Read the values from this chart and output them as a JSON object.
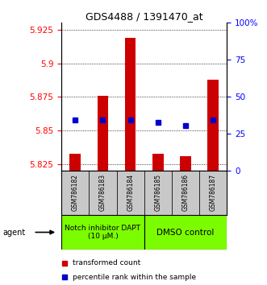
{
  "title": "GDS4488 / 1391470_at",
  "samples": [
    "GSM786182",
    "GSM786183",
    "GSM786184",
    "GSM786185",
    "GSM786186",
    "GSM786187"
  ],
  "bar_bottoms": [
    5.82,
    5.82,
    5.82,
    5.82,
    5.82,
    5.82
  ],
  "bar_tops": [
    5.833,
    5.876,
    5.919,
    5.833,
    5.831,
    5.888
  ],
  "percentile_values": [
    5.858,
    5.858,
    5.858,
    5.856,
    5.854,
    5.858
  ],
  "ylim": [
    5.82,
    5.93
  ],
  "yticks_left": [
    5.825,
    5.85,
    5.875,
    5.9,
    5.925
  ],
  "yticks_right_pct": [
    0,
    25,
    50,
    75,
    100
  ],
  "bar_color": "#cc0000",
  "percentile_color": "#0000cc",
  "group1_label": "Notch inhibitor DAPT\n(10 μM.)",
  "group2_label": "DMSO control",
  "group_bg_color": "#7cfc00",
  "legend_bar_label": "transformed count",
  "legend_pct_label": "percentile rank within the sample",
  "agent_label": "agent",
  "table_bg_color": "#c8c8c8",
  "bar_width": 0.4,
  "title_fontsize": 9,
  "tick_fontsize": 7.5,
  "sample_fontsize": 5.5,
  "group_fontsize1": 6.5,
  "group_fontsize2": 7.5,
  "legend_fontsize": 6.5
}
